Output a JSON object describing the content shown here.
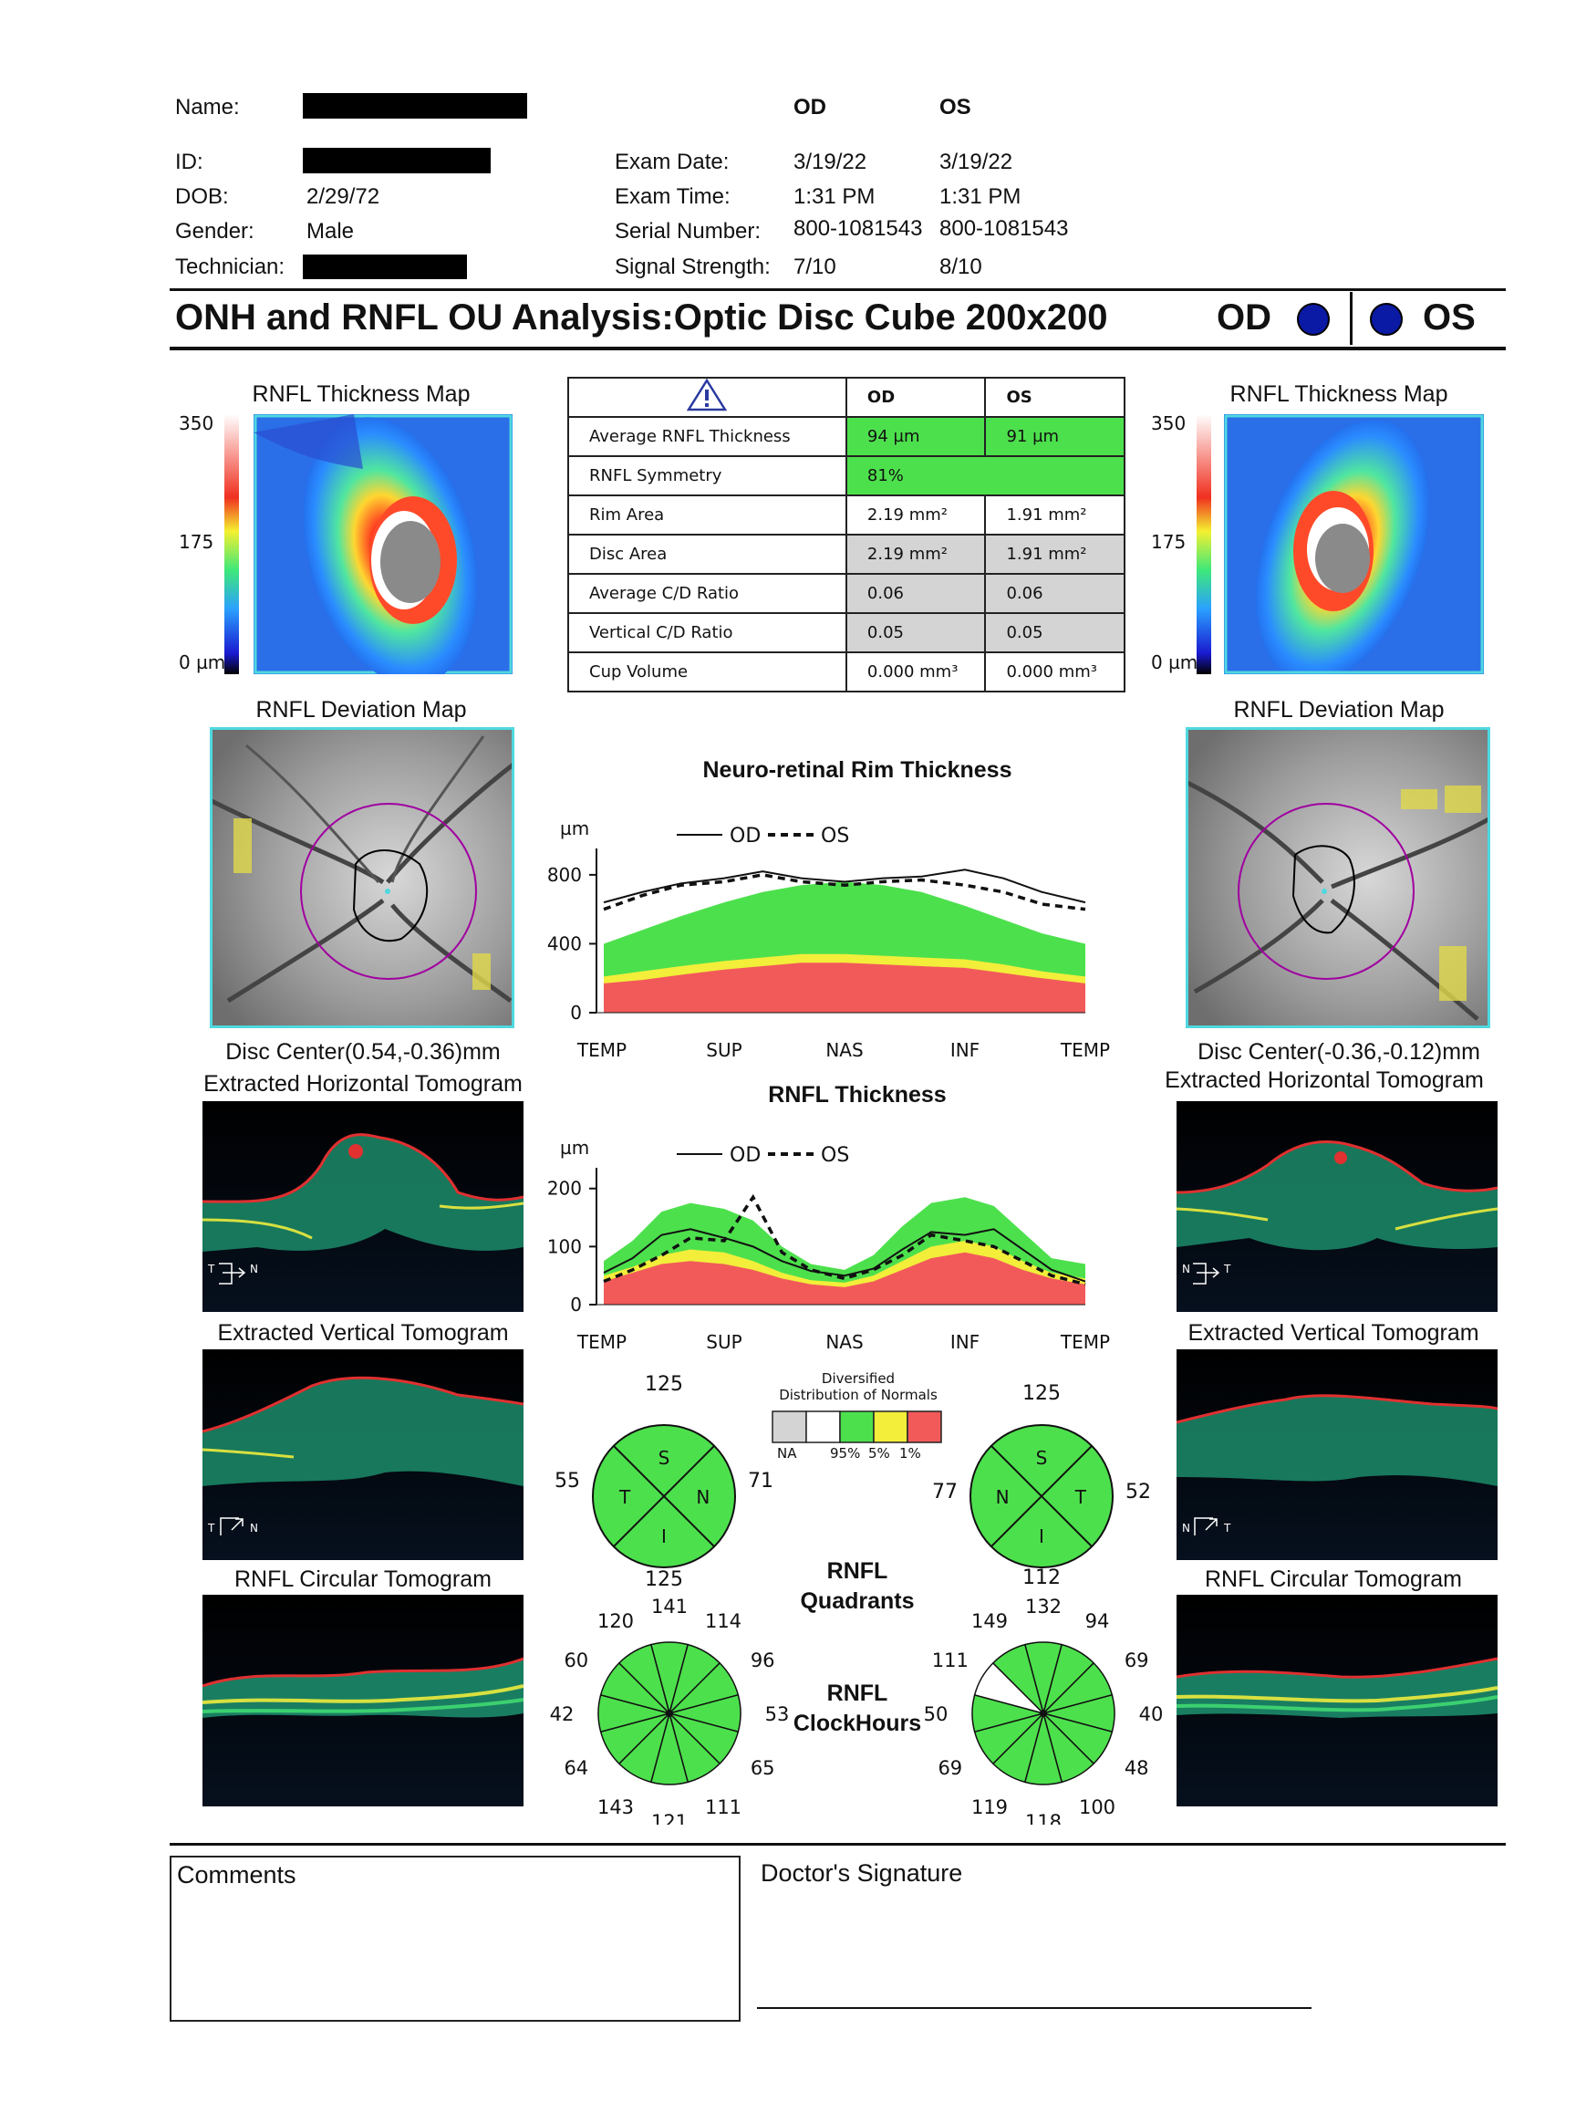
{
  "patient": {
    "name_label": "Name:",
    "id_label": "ID:",
    "dob_label": "DOB:",
    "dob": "2/29/72",
    "gender_label": "Gender:",
    "gender": "Male",
    "technician_label": "Technician:"
  },
  "exam": {
    "od_header": "OD",
    "os_header": "OS",
    "date_label": "Exam Date:",
    "date_od": "3/19/22",
    "date_os": "3/19/22",
    "time_label": "Exam Time:",
    "time_od": "1:31 PM",
    "time_os": "1:31 PM",
    "serial_label": "Serial Number:",
    "serial_od": "800-1081543",
    "serial_os": "800-1081543",
    "signal_label": "Signal Strength:",
    "signal_od": "7/10",
    "signal_os": "8/10"
  },
  "title": {
    "text": "ONH and RNFL OU Analysis:Optic Disc Cube 200x200",
    "od": "OD",
    "os": "OS"
  },
  "maps": {
    "thickness_title": "RNFL Thickness Map",
    "scale_350": "350",
    "scale_175": "175",
    "scale_0": "0 µm",
    "deviation_title": "RNFL Deviation Map",
    "disc_center_od": "Disc Center(0.54,-0.36)mm",
    "disc_center_os": "Disc Center(-0.36,-0.12)mm",
    "horizontal_title": "Extracted Horizontal Tomogram",
    "vertical_title": "Extracted Vertical Tomogram",
    "circular_title": "RNFL Circular Tomogram"
  },
  "table": {
    "col_od": "OD",
    "col_os": "OS",
    "rows": [
      {
        "label": "Average RNFL Thickness",
        "od": "94 µm",
        "os": "91 µm"
      },
      {
        "label": "RNFL Symmetry",
        "od": "81%",
        "os": ""
      },
      {
        "label": "Rim Area",
        "od": "2.19 mm²",
        "os": "1.91 mm²"
      },
      {
        "label": "Disc Area",
        "od": "2.19 mm²",
        "os": "1.91 mm²"
      },
      {
        "label": "Average C/D Ratio",
        "od": "0.06",
        "os": "0.06"
      },
      {
        "label": "Vertical C/D Ratio",
        "od": "0.05",
        "os": "0.05"
      },
      {
        "label": "Cup Volume",
        "od": "0.000 mm³",
        "os": "0.000 mm³"
      }
    ]
  },
  "chart_data": [
    {
      "type": "line",
      "title": "Neuro-retinal Rim Thickness",
      "ylabel": "µm",
      "ylim": [
        0,
        900
      ],
      "yticks": [
        "800",
        "400",
        "0"
      ],
      "xticks": [
        "TEMP",
        "SUP",
        "NAS",
        "INF",
        "TEMP"
      ],
      "legend": {
        "od": "OD",
        "os": "OS"
      },
      "x": [
        0,
        8,
        16,
        25,
        33,
        41,
        50,
        58,
        66,
        75,
        83,
        91,
        100
      ],
      "series": [
        {
          "name": "OD",
          "values": [
            640,
            700,
            750,
            780,
            820,
            780,
            760,
            780,
            790,
            830,
            780,
            700,
            640
          ]
        },
        {
          "name": "OS",
          "values": [
            600,
            680,
            740,
            760,
            800,
            760,
            740,
            760,
            770,
            740,
            700,
            630,
            600
          ]
        }
      ],
      "normal_bands": {
        "red_1pct": [
          170,
          190,
          220,
          250,
          270,
          290,
          290,
          280,
          270,
          260,
          230,
          200,
          170
        ],
        "yellow_5pct": [
          210,
          240,
          270,
          300,
          320,
          340,
          340,
          330,
          320,
          310,
          280,
          240,
          210
        ],
        "green_95pct": [
          400,
          480,
          560,
          640,
          700,
          740,
          760,
          740,
          700,
          620,
          540,
          460,
          400
        ]
      }
    },
    {
      "type": "line",
      "title": "RNFL Thickness",
      "ylabel": "µm",
      "ylim": [
        0,
        220
      ],
      "yticks": [
        "200",
        "100",
        "0"
      ],
      "xticks": [
        "TEMP",
        "SUP",
        "NAS",
        "INF",
        "TEMP"
      ],
      "legend": {
        "od": "OD",
        "os": "OS"
      },
      "x": [
        0,
        6,
        12,
        18,
        25,
        31,
        37,
        43,
        50,
        56,
        62,
        68,
        75,
        81,
        87,
        93,
        100
      ],
      "series": [
        {
          "name": "OD",
          "values": [
            55,
            80,
            120,
            130,
            115,
            100,
            75,
            58,
            50,
            62,
            95,
            125,
            120,
            130,
            95,
            60,
            40
          ]
        },
        {
          "name": "OS",
          "values": [
            40,
            60,
            85,
            115,
            110,
            185,
            90,
            60,
            45,
            60,
            85,
            120,
            110,
            100,
            75,
            50,
            35
          ]
        }
      ],
      "normal_bands": {
        "red_1pct": [
          40,
          55,
          70,
          75,
          70,
          60,
          45,
          35,
          30,
          40,
          60,
          80,
          90,
          80,
          60,
          45,
          35
        ],
        "yellow_5pct": [
          50,
          65,
          85,
          95,
          90,
          75,
          55,
          42,
          38,
          50,
          75,
          100,
          110,
          100,
          75,
          55,
          45
        ],
        "green_95pct": [
          75,
          110,
          160,
          175,
          165,
          145,
          100,
          70,
          60,
          85,
          135,
          175,
          185,
          170,
          125,
          80,
          70
        ]
      }
    }
  ],
  "legend": {
    "title_1": "Diversified",
    "title_2": "Distribution of Normals",
    "na": "NA",
    "p95": "95%",
    "p5": "5%",
    "p1": "1%"
  },
  "quadrants": {
    "label_1": "RNFL",
    "label_2": "Quadrants",
    "od": {
      "s": "125",
      "i": "125",
      "t": "55",
      "n": "71"
    },
    "os": {
      "s": "125",
      "i": "112",
      "t": "52",
      "n": "77"
    },
    "letters": {
      "s": "S",
      "i": "I",
      "t": "T",
      "n": "N"
    }
  },
  "clockhours": {
    "label_1": "RNFL",
    "label_2": "ClockHours",
    "od": [
      "141",
      "114",
      "96",
      "53",
      "65",
      "111",
      "121",
      "143",
      "64",
      "42",
      "60",
      "120"
    ],
    "os": [
      "132",
      "94",
      "69",
      "40",
      "48",
      "100",
      "118",
      "119",
      "69",
      "50",
      "111",
      "149"
    ]
  },
  "footer": {
    "comments": "Comments",
    "signature": "Doctor's Signature"
  },
  "colors": {
    "green": "#4de04d",
    "yellow": "#f2ee3a",
    "red": "#f25a5a",
    "gray": "#d4d4d4",
    "cyan_frame": "#4fd8e0",
    "dot_blue": "#0b1aa5"
  }
}
